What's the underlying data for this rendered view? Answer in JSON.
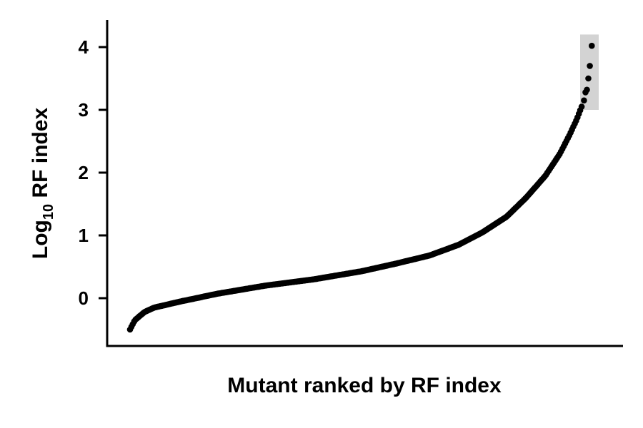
{
  "chart_data": {
    "type": "scatter",
    "title": "",
    "xlabel": "Mutant ranked by RF index",
    "ylabel_main": "Log",
    "ylabel_sub": "10",
    "ylabel_rest": " RF index",
    "ylim": [
      -0.75,
      4.45
    ],
    "yticks": [
      0,
      1,
      2,
      3,
      4
    ],
    "ytick_labels": [
      "0",
      "1",
      "2",
      "3",
      "4"
    ],
    "grid": false,
    "legend": "none",
    "point_color": "#000000",
    "highlight": {
      "y_range": [
        3.0,
        4.2
      ],
      "color": "#d3d3d3"
    },
    "curve_keypoints": [
      [
        0.0,
        -0.5
      ],
      [
        0.01,
        -0.35
      ],
      [
        0.03,
        -0.22
      ],
      [
        0.05,
        -0.15
      ],
      [
        0.1,
        -0.06
      ],
      [
        0.18,
        0.07
      ],
      [
        0.28,
        0.2
      ],
      [
        0.38,
        0.3
      ],
      [
        0.48,
        0.43
      ],
      [
        0.55,
        0.55
      ],
      [
        0.62,
        0.68
      ],
      [
        0.68,
        0.85
      ],
      [
        0.73,
        1.05
      ],
      [
        0.78,
        1.3
      ],
      [
        0.82,
        1.6
      ],
      [
        0.86,
        1.95
      ],
      [
        0.89,
        2.3
      ],
      [
        0.91,
        2.6
      ],
      [
        0.925,
        2.85
      ],
      [
        0.935,
        3.05
      ]
    ],
    "n_points": 330,
    "top_points": [
      [
        0.94,
        3.15
      ],
      [
        0.943,
        3.28
      ],
      [
        0.946,
        3.32
      ],
      [
        0.949,
        3.5
      ],
      [
        0.952,
        3.7
      ],
      [
        0.956,
        4.02
      ]
    ]
  }
}
